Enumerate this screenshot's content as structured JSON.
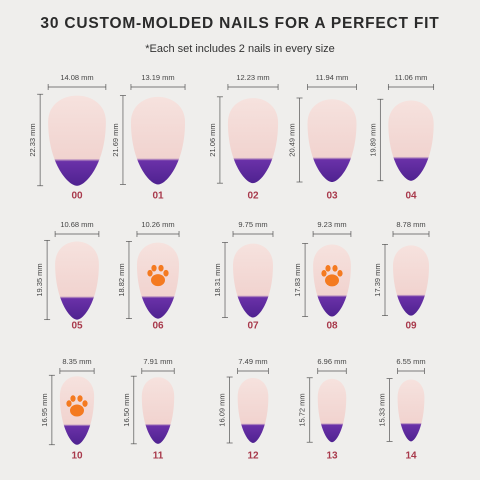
{
  "header": {
    "title": "30 CUSTOM-MOLDED NAILS FOR A PERFECT FIT",
    "subtitle": "*Each set includes 2 nails in every size"
  },
  "nails": [
    {
      "label": "00",
      "width": "14.08 mm",
      "height": "22.33 mm"
    },
    {
      "label": "01",
      "width": "13.19 mm",
      "height": "21.69 mm"
    },
    {
      "label": "02",
      "width": "12.23 mm",
      "height": "21.06 mm"
    },
    {
      "label": "03",
      "width": "11.94 mm",
      "height": "20.49 mm"
    },
    {
      "label": "04",
      "width": "11.06 mm",
      "height": "19.89 mm"
    },
    {
      "label": "05",
      "width": "10.68 mm",
      "height": "19.35 mm"
    },
    {
      "label": "06",
      "width": "10.26 mm",
      "height": "18.82 mm"
    },
    {
      "label": "07",
      "width": "9.75 mm",
      "height": "18.31 mm"
    },
    {
      "label": "08",
      "width": "9.23 mm",
      "height": "17.83 mm"
    },
    {
      "label": "09",
      "width": "8.78 mm",
      "height": "17.39 mm"
    },
    {
      "label": "10",
      "width": "8.35 mm",
      "height": "16.95 mm"
    },
    {
      "label": "11",
      "width": "7.91 mm",
      "height": "16.50 mm"
    },
    {
      "label": "12",
      "width": "7.49 mm",
      "height": "16.09 mm"
    },
    {
      "label": "13",
      "width": "6.96 mm",
      "height": "15.72 mm"
    },
    {
      "label": "14",
      "width": "6.55 mm",
      "height": "15.33 mm"
    }
  ]
}
